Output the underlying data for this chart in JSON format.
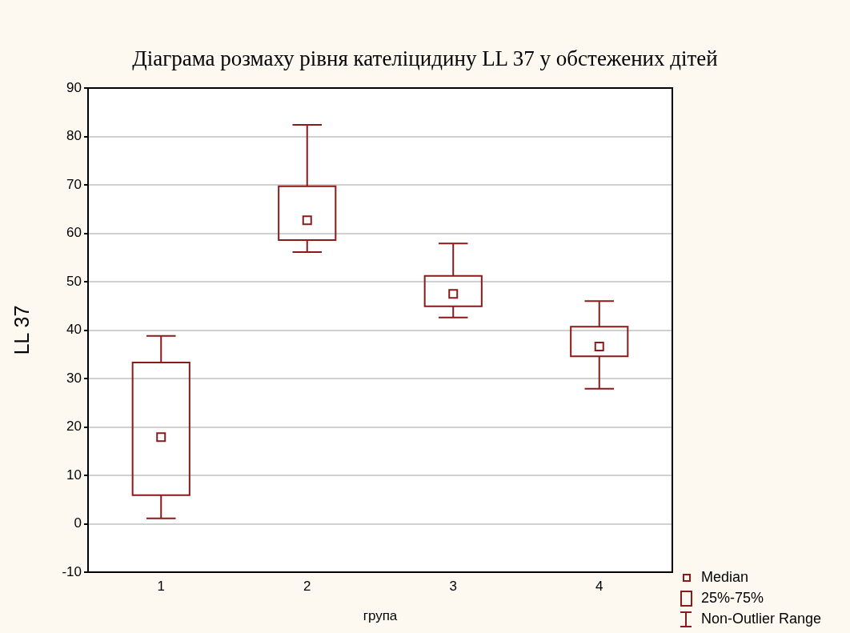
{
  "chart_data": {
    "type": "box",
    "title": "Діаграма розмаху рівня кателіцидину LL 37 у обстежених дітей",
    "xlabel": "група",
    "ylabel": "LL 37",
    "categories": [
      "1",
      "2",
      "3",
      "4"
    ],
    "color": "#8b1a1a",
    "boxes": [
      {
        "low": 1.1,
        "q1": 5.9,
        "median": 17.9,
        "q3": 33.3,
        "high": 38.8
      },
      {
        "low": 56.1,
        "q1": 58.6,
        "median": 62.7,
        "q3": 69.7,
        "high": 82.4
      },
      {
        "low": 42.6,
        "q1": 44.9,
        "median": 47.5,
        "q3": 51.2,
        "high": 57.9
      },
      {
        "low": 27.9,
        "q1": 34.6,
        "median": 36.6,
        "q3": 40.7,
        "high": 46.0
      }
    ],
    "ylim": [
      -10,
      90
    ],
    "yticks": [
      -10,
      0,
      10,
      20,
      30,
      40,
      50,
      60,
      70,
      80,
      90
    ],
    "grid": "y",
    "annotations": [
      "Median",
      "25%-75%",
      "Non-Outlier Range"
    ]
  }
}
